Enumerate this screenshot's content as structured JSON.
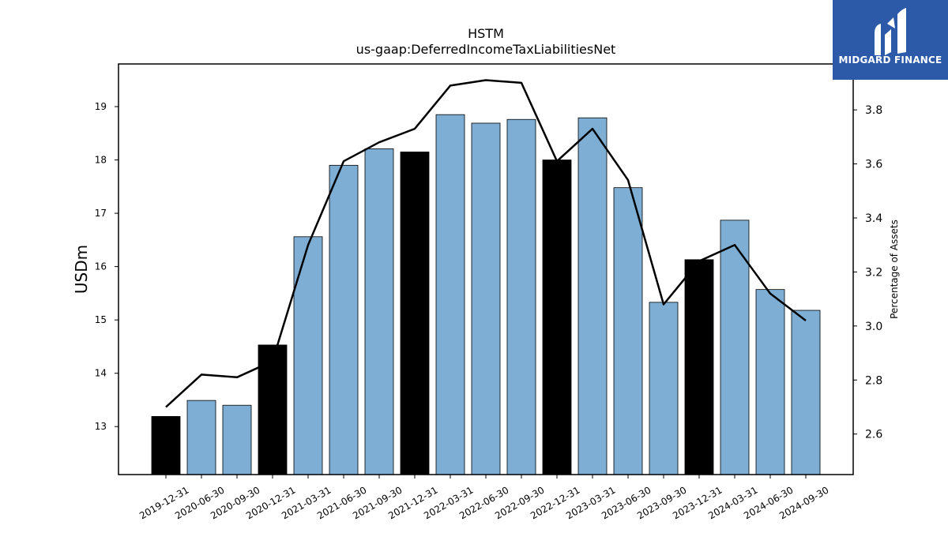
{
  "chart_data": {
    "type": "bar",
    "title": "HSTM",
    "subtitle": "us-gaap:DeferredIncomeTaxLiabilitiesNet",
    "ylabel": "USDm",
    "y2label": "Percentage of Assets",
    "categories": [
      "2019-12-31",
      "2020-06-30",
      "2020-09-30",
      "2020-12-31",
      "2021-03-31",
      "2021-06-30",
      "2021-09-30",
      "2021-12-31",
      "2022-03-31",
      "2022-06-30",
      "2022-09-30",
      "2022-12-31",
      "2023-03-31",
      "2023-06-30",
      "2023-09-30",
      "2023-12-31",
      "2024-03-31",
      "2024-06-30",
      "2024-09-30"
    ],
    "values": [
      13.19,
      13.49,
      13.4,
      14.53,
      16.56,
      17.9,
      18.21,
      18.15,
      18.85,
      18.69,
      18.76,
      18.0,
      18.79,
      17.48,
      15.33,
      16.13,
      16.87,
      15.57,
      15.18
    ],
    "highlight": [
      true,
      false,
      false,
      true,
      false,
      false,
      false,
      true,
      false,
      false,
      false,
      true,
      false,
      false,
      false,
      true,
      false,
      false,
      false
    ],
    "line_values": [
      2.7,
      2.82,
      2.81,
      2.87,
      3.3,
      3.61,
      3.68,
      3.73,
      3.89,
      3.91,
      3.9,
      3.61,
      3.73,
      3.54,
      3.08,
      3.24,
      3.3,
      3.12,
      3.02
    ],
    "ylim": [
      12.1,
      19.8
    ],
    "y2lim": [
      2.45,
      3.97
    ],
    "yticks": [
      13,
      14,
      15,
      16,
      17,
      18,
      19
    ],
    "y2ticks": [
      2.6,
      2.8,
      3.0,
      3.2,
      3.4,
      3.6,
      3.8
    ],
    "colors": {
      "bar": "#7eaed3",
      "highlight": "#000000",
      "line": "#000000"
    },
    "grid": false
  },
  "logo": {
    "text": "MIDGARD FINANCE"
  }
}
